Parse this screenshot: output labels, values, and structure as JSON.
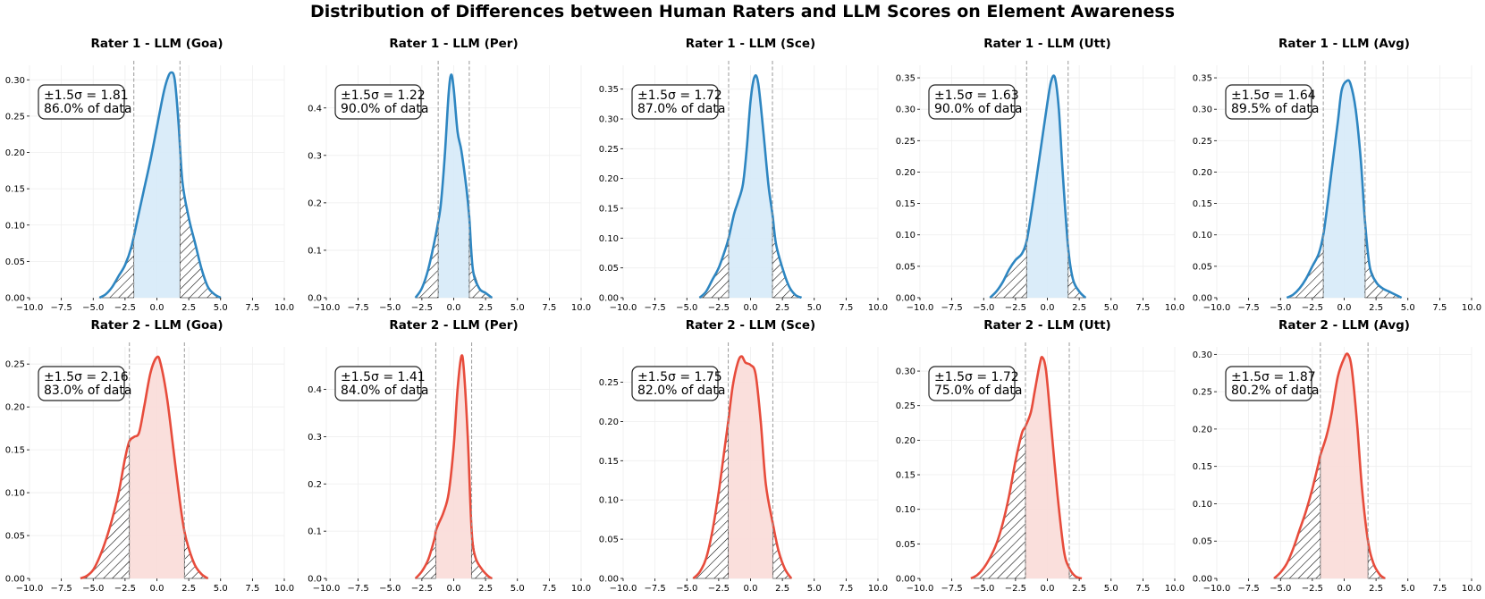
{
  "title": "Distribution of Differences between Human Raters and LLM Scores on Element Awareness",
  "colors": {
    "rater1_line": "#2e86c1",
    "rater1_fill": "#d6eaf8",
    "rater2_line": "#e74c3c",
    "rater2_fill": "#fadbd8",
    "threshold_line": "#999999",
    "tail_hatch": "#000000"
  },
  "chart_data": [
    {
      "type": "area",
      "title": "Rater 1 - LLM (Goa)",
      "row": 0,
      "col": 0,
      "color": "blue",
      "xlim": [
        -10,
        10
      ],
      "ylim": [
        0,
        0.32
      ],
      "yticks": [
        0,
        0.05,
        0.1,
        0.15,
        0.2,
        0.25,
        0.3
      ],
      "ytick_labels": [
        "0.00",
        "0.05",
        "0.10",
        "0.15",
        "0.20",
        "0.25",
        "0.30"
      ],
      "threshold": 1.81,
      "sigma_label": "±1.5σ = 1.81",
      "pct_label": "86.0% of data",
      "curve": [
        [
          -4.5,
          0.0
        ],
        [
          -4,
          0.005
        ],
        [
          -3.5,
          0.015
        ],
        [
          -3,
          0.03
        ],
        [
          -2.5,
          0.045
        ],
        [
          -2,
          0.07
        ],
        [
          -1.5,
          0.11
        ],
        [
          -1,
          0.15
        ],
        [
          -0.5,
          0.19
        ],
        [
          0,
          0.235
        ],
        [
          0.5,
          0.28
        ],
        [
          0.8,
          0.3
        ],
        [
          1.1,
          0.31
        ],
        [
          1.4,
          0.3
        ],
        [
          1.7,
          0.24
        ],
        [
          2,
          0.16
        ],
        [
          2.5,
          0.11
        ],
        [
          3,
          0.075
        ],
        [
          3.5,
          0.04
        ],
        [
          4,
          0.015
        ],
        [
          4.5,
          0.005
        ],
        [
          5,
          0.0
        ]
      ]
    },
    {
      "type": "area",
      "title": "Rater 1 - LLM (Per)",
      "row": 0,
      "col": 1,
      "color": "blue",
      "xlim": [
        -10,
        10
      ],
      "ylim": [
        0,
        0.49
      ],
      "yticks": [
        0,
        0.1,
        0.2,
        0.3,
        0.4
      ],
      "ytick_labels": [
        "0.0",
        "0.1",
        "0.2",
        "0.3",
        "0.4"
      ],
      "threshold": 1.22,
      "sigma_label": "±1.5σ = 1.22",
      "pct_label": "90.0% of data",
      "curve": [
        [
          -3,
          0.0
        ],
        [
          -2.5,
          0.02
        ],
        [
          -2,
          0.06
        ],
        [
          -1.5,
          0.12
        ],
        [
          -1.22,
          0.16
        ],
        [
          -1,
          0.2
        ],
        [
          -0.7,
          0.3
        ],
        [
          -0.4,
          0.43
        ],
        [
          -0.2,
          0.47
        ],
        [
          0,
          0.44
        ],
        [
          0.3,
          0.35
        ],
        [
          0.6,
          0.31
        ],
        [
          1,
          0.23
        ],
        [
          1.22,
          0.17
        ],
        [
          1.5,
          0.06
        ],
        [
          2,
          0.02
        ],
        [
          2.5,
          0.01
        ],
        [
          3,
          0.0
        ]
      ]
    },
    {
      "type": "area",
      "title": "Rater 1 - LLM (Sce)",
      "row": 0,
      "col": 2,
      "color": "blue",
      "xlim": [
        -10,
        10
      ],
      "ylim": [
        0,
        0.39
      ],
      "yticks": [
        0,
        0.05,
        0.1,
        0.15,
        0.2,
        0.25,
        0.3,
        0.35
      ],
      "ytick_labels": [
        "0.00",
        "0.05",
        "0.10",
        "0.15",
        "0.20",
        "0.25",
        "0.30",
        "0.35"
      ],
      "threshold": 1.72,
      "sigma_label": "±1.5σ = 1.72",
      "pct_label": "87.0% of data",
      "curve": [
        [
          -4,
          0.0
        ],
        [
          -3.5,
          0.01
        ],
        [
          -3,
          0.03
        ],
        [
          -2.5,
          0.05
        ],
        [
          -2,
          0.08
        ],
        [
          -1.72,
          0.1
        ],
        [
          -1.3,
          0.14
        ],
        [
          -1,
          0.16
        ],
        [
          -0.6,
          0.19
        ],
        [
          -0.3,
          0.25
        ],
        [
          0,
          0.33
        ],
        [
          0.3,
          0.37
        ],
        [
          0.6,
          0.36
        ],
        [
          1,
          0.28
        ],
        [
          1.4,
          0.19
        ],
        [
          1.72,
          0.14
        ],
        [
          2,
          0.09
        ],
        [
          2.5,
          0.05
        ],
        [
          3,
          0.02
        ],
        [
          3.5,
          0.005
        ],
        [
          4,
          0.0
        ]
      ]
    },
    {
      "type": "area",
      "title": "Rater 1 - LLM (Utt)",
      "row": 0,
      "col": 3,
      "color": "blue",
      "xlim": [
        -10,
        10
      ],
      "ylim": [
        0,
        0.37
      ],
      "yticks": [
        0,
        0.05,
        0.1,
        0.15,
        0.2,
        0.25,
        0.3,
        0.35
      ],
      "ytick_labels": [
        "0.00",
        "0.05",
        "0.10",
        "0.15",
        "0.20",
        "0.25",
        "0.30",
        "0.35"
      ],
      "threshold": 1.63,
      "sigma_label": "±1.5σ = 1.63",
      "pct_label": "90.0% of data",
      "curve": [
        [
          -4.5,
          0.0
        ],
        [
          -4,
          0.01
        ],
        [
          -3.5,
          0.025
        ],
        [
          -3,
          0.045
        ],
        [
          -2.5,
          0.06
        ],
        [
          -2,
          0.07
        ],
        [
          -1.63,
          0.09
        ],
        [
          -1.3,
          0.13
        ],
        [
          -1,
          0.17
        ],
        [
          -0.5,
          0.24
        ],
        [
          0,
          0.31
        ],
        [
          0.3,
          0.345
        ],
        [
          0.6,
          0.35
        ],
        [
          0.9,
          0.3
        ],
        [
          1.2,
          0.2
        ],
        [
          1.63,
          0.08
        ],
        [
          2,
          0.03
        ],
        [
          2.5,
          0.01
        ],
        [
          3,
          0.0
        ]
      ]
    },
    {
      "type": "area",
      "title": "Rater 1 - LLM (Avg)",
      "row": 0,
      "col": 4,
      "color": "blue",
      "xlim": [
        -10,
        10
      ],
      "ylim": [
        0,
        0.37
      ],
      "yticks": [
        0,
        0.05,
        0.1,
        0.15,
        0.2,
        0.25,
        0.3,
        0.35
      ],
      "ytick_labels": [
        "0.00",
        "0.05",
        "0.10",
        "0.15",
        "0.20",
        "0.25",
        "0.30",
        "0.35"
      ],
      "threshold": 1.64,
      "sigma_label": "±1.5σ = 1.64",
      "pct_label": "89.5% of data",
      "curve": [
        [
          -4.5,
          0.0
        ],
        [
          -4,
          0.005
        ],
        [
          -3.5,
          0.015
        ],
        [
          -3,
          0.03
        ],
        [
          -2.5,
          0.05
        ],
        [
          -2,
          0.07
        ],
        [
          -1.64,
          0.1
        ],
        [
          -1.3,
          0.15
        ],
        [
          -1,
          0.2
        ],
        [
          -0.5,
          0.28
        ],
        [
          -0.2,
          0.33
        ],
        [
          0.2,
          0.345
        ],
        [
          0.5,
          0.34
        ],
        [
          0.9,
          0.3
        ],
        [
          1.3,
          0.22
        ],
        [
          1.64,
          0.12
        ],
        [
          2,
          0.05
        ],
        [
          2.5,
          0.025
        ],
        [
          3,
          0.015
        ],
        [
          3.5,
          0.01
        ],
        [
          4,
          0.005
        ],
        [
          4.5,
          0.0
        ]
      ]
    },
    {
      "type": "area",
      "title": "Rater 2 - LLM (Goa)",
      "row": 1,
      "col": 0,
      "color": "red",
      "xlim": [
        -10,
        10
      ],
      "ylim": [
        0,
        0.27
      ],
      "yticks": [
        0,
        0.05,
        0.1,
        0.15,
        0.2,
        0.25
      ],
      "ytick_labels": [
        "0.00",
        "0.05",
        "0.10",
        "0.15",
        "0.20",
        "0.25"
      ],
      "threshold": 2.16,
      "sigma_label": "±1.5σ = 2.16",
      "pct_label": "83.0% of data",
      "curve": [
        [
          -6,
          0.0
        ],
        [
          -5.5,
          0.003
        ],
        [
          -5,
          0.01
        ],
        [
          -4.5,
          0.025
        ],
        [
          -4,
          0.045
        ],
        [
          -3.5,
          0.07
        ],
        [
          -3,
          0.1
        ],
        [
          -2.5,
          0.14
        ],
        [
          -2.16,
          0.16
        ],
        [
          -1.8,
          0.165
        ],
        [
          -1.4,
          0.17
        ],
        [
          -1,
          0.2
        ],
        [
          -0.5,
          0.24
        ],
        [
          0,
          0.258
        ],
        [
          0.3,
          0.25
        ],
        [
          0.8,
          0.21
        ],
        [
          1.3,
          0.15
        ],
        [
          1.8,
          0.09
        ],
        [
          2.16,
          0.055
        ],
        [
          2.5,
          0.035
        ],
        [
          3,
          0.015
        ],
        [
          3.5,
          0.005
        ],
        [
          4,
          0.0
        ]
      ]
    },
    {
      "type": "area",
      "title": "Rater 2 - LLM (Per)",
      "row": 1,
      "col": 1,
      "color": "red",
      "xlim": [
        -10,
        10
      ],
      "ylim": [
        0,
        0.49
      ],
      "yticks": [
        0,
        0.1,
        0.2,
        0.3,
        0.4
      ],
      "ytick_labels": [
        "0.0",
        "0.1",
        "0.2",
        "0.3",
        "0.4"
      ],
      "threshold": 1.41,
      "sigma_label": "±1.5σ = 1.41",
      "pct_label": "84.0% of data",
      "curve": [
        [
          -3,
          0.0
        ],
        [
          -2.5,
          0.015
        ],
        [
          -2,
          0.04
        ],
        [
          -1.5,
          0.085
        ],
        [
          -1.41,
          0.1
        ],
        [
          -1.2,
          0.115
        ],
        [
          -0.8,
          0.14
        ],
        [
          -0.4,
          0.18
        ],
        [
          0,
          0.28
        ],
        [
          0.3,
          0.4
        ],
        [
          0.6,
          0.47
        ],
        [
          0.8,
          0.44
        ],
        [
          1.1,
          0.3
        ],
        [
          1.41,
          0.1
        ],
        [
          1.7,
          0.045
        ],
        [
          2.2,
          0.02
        ],
        [
          2.7,
          0.005
        ],
        [
          3,
          0.0
        ]
      ]
    },
    {
      "type": "area",
      "title": "Rater 2 - LLM (Sce)",
      "row": 1,
      "col": 2,
      "color": "red",
      "xlim": [
        -10,
        10
      ],
      "ylim": [
        0,
        0.295
      ],
      "yticks": [
        0,
        0.05,
        0.1,
        0.15,
        0.2,
        0.25
      ],
      "ytick_labels": [
        "0.00",
        "0.05",
        "0.10",
        "0.15",
        "0.20",
        "0.25"
      ],
      "threshold": 1.75,
      "sigma_label": "±1.5σ = 1.75",
      "pct_label": "82.0% of data",
      "curve": [
        [
          -4.5,
          0.0
        ],
        [
          -4,
          0.008
        ],
        [
          -3.5,
          0.025
        ],
        [
          -3,
          0.06
        ],
        [
          -2.5,
          0.11
        ],
        [
          -2,
          0.17
        ],
        [
          -1.75,
          0.2
        ],
        [
          -1.4,
          0.245
        ],
        [
          -1,
          0.275
        ],
        [
          -0.7,
          0.283
        ],
        [
          -0.4,
          0.275
        ],
        [
          0,
          0.272
        ],
        [
          0.4,
          0.26
        ],
        [
          0.8,
          0.2
        ],
        [
          1.2,
          0.12
        ],
        [
          1.75,
          0.07
        ],
        [
          2.2,
          0.035
        ],
        [
          2.7,
          0.012
        ],
        [
          3.2,
          0.0
        ]
      ]
    },
    {
      "type": "area",
      "title": "Rater 2 - LLM (Utt)",
      "row": 1,
      "col": 3,
      "color": "red",
      "xlim": [
        -10,
        10
      ],
      "ylim": [
        0,
        0.335
      ],
      "yticks": [
        0,
        0.05,
        0.1,
        0.15,
        0.2,
        0.25,
        0.3
      ],
      "ytick_labels": [
        "0.00",
        "0.05",
        "0.10",
        "0.15",
        "0.20",
        "0.25",
        "0.30"
      ],
      "threshold": 1.72,
      "sigma_label": "±1.5σ = 1.72",
      "pct_label": "75.0% of data",
      "curve": [
        [
          -6,
          0.0
        ],
        [
          -5.5,
          0.005
        ],
        [
          -5,
          0.015
        ],
        [
          -4.5,
          0.03
        ],
        [
          -4,
          0.05
        ],
        [
          -3.5,
          0.08
        ],
        [
          -3,
          0.12
        ],
        [
          -2.5,
          0.17
        ],
        [
          -2,
          0.21
        ],
        [
          -1.72,
          0.22
        ],
        [
          -1.3,
          0.24
        ],
        [
          -1,
          0.27
        ],
        [
          -0.6,
          0.31
        ],
        [
          -0.4,
          0.32
        ],
        [
          -0.1,
          0.3
        ],
        [
          0.3,
          0.22
        ],
        [
          0.8,
          0.12
        ],
        [
          1.3,
          0.04
        ],
        [
          1.72,
          0.015
        ],
        [
          2.2,
          0.003
        ],
        [
          2.7,
          0.0
        ]
      ]
    },
    {
      "type": "area",
      "title": "Rater 2 - LLM (Avg)",
      "row": 1,
      "col": 4,
      "color": "red",
      "xlim": [
        -10,
        10
      ],
      "ylim": [
        0,
        0.31
      ],
      "yticks": [
        0,
        0.05,
        0.1,
        0.15,
        0.2,
        0.25,
        0.3
      ],
      "ytick_labels": [
        "0.00",
        "0.05",
        "0.10",
        "0.15",
        "0.20",
        "0.25",
        "0.30"
      ],
      "threshold": 1.87,
      "sigma_label": "±1.5σ = 1.87",
      "pct_label": "80.2% of data",
      "curve": [
        [
          -5.5,
          0.0
        ],
        [
          -5,
          0.008
        ],
        [
          -4.5,
          0.02
        ],
        [
          -4,
          0.04
        ],
        [
          -3.5,
          0.065
        ],
        [
          -3,
          0.09
        ],
        [
          -2.5,
          0.12
        ],
        [
          -2,
          0.155
        ],
        [
          -1.87,
          0.165
        ],
        [
          -1.4,
          0.19
        ],
        [
          -1,
          0.22
        ],
        [
          -0.5,
          0.27
        ],
        [
          0,
          0.295
        ],
        [
          0.3,
          0.3
        ],
        [
          0.6,
          0.28
        ],
        [
          1,
          0.21
        ],
        [
          1.4,
          0.12
        ],
        [
          1.87,
          0.05
        ],
        [
          2.3,
          0.02
        ],
        [
          2.8,
          0.005
        ],
        [
          3.2,
          0.0
        ]
      ]
    }
  ],
  "xtick_labels": [
    "−10.0",
    "−7.5",
    "−5.0",
    "−2.5",
    "0.0",
    "2.5",
    "5.0",
    "7.5",
    "10.0"
  ]
}
